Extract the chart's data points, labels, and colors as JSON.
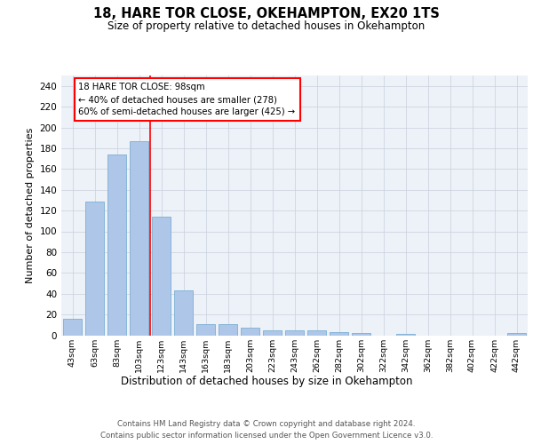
{
  "title_line1": "18, HARE TOR CLOSE, OKEHAMPTON, EX20 1TS",
  "title_line2": "Size of property relative to detached houses in Okehampton",
  "xlabel": "Distribution of detached houses by size in Okehampton",
  "ylabel": "Number of detached properties",
  "categories": [
    "43sqm",
    "63sqm",
    "83sqm",
    "103sqm",
    "123sqm",
    "143sqm",
    "163sqm",
    "183sqm",
    "203sqm",
    "223sqm",
    "243sqm",
    "262sqm",
    "282sqm",
    "302sqm",
    "322sqm",
    "342sqm",
    "362sqm",
    "382sqm",
    "402sqm",
    "422sqm",
    "442sqm"
  ],
  "values": [
    16,
    129,
    174,
    187,
    114,
    43,
    11,
    11,
    7,
    5,
    5,
    5,
    3,
    2,
    0,
    1,
    0,
    0,
    0,
    0,
    2
  ],
  "bar_color": "#aec6e8",
  "bar_edge_color": "#7bafd4",
  "grid_color": "#c8d0dc",
  "vline_x": 3.5,
  "vline_color": "red",
  "annotation_text": "18 HARE TOR CLOSE: 98sqm\n← 40% of detached houses are smaller (278)\n60% of semi-detached houses are larger (425) →",
  "annotation_box_color": "red",
  "ylim": [
    0,
    250
  ],
  "yticks": [
    0,
    20,
    40,
    60,
    80,
    100,
    120,
    140,
    160,
    180,
    200,
    220,
    240
  ],
  "footer_line1": "Contains HM Land Registry data © Crown copyright and database right 2024.",
  "footer_line2": "Contains public sector information licensed under the Open Government Licence v3.0.",
  "bg_color": "#ffffff",
  "plot_bg_color": "#edf1f8"
}
